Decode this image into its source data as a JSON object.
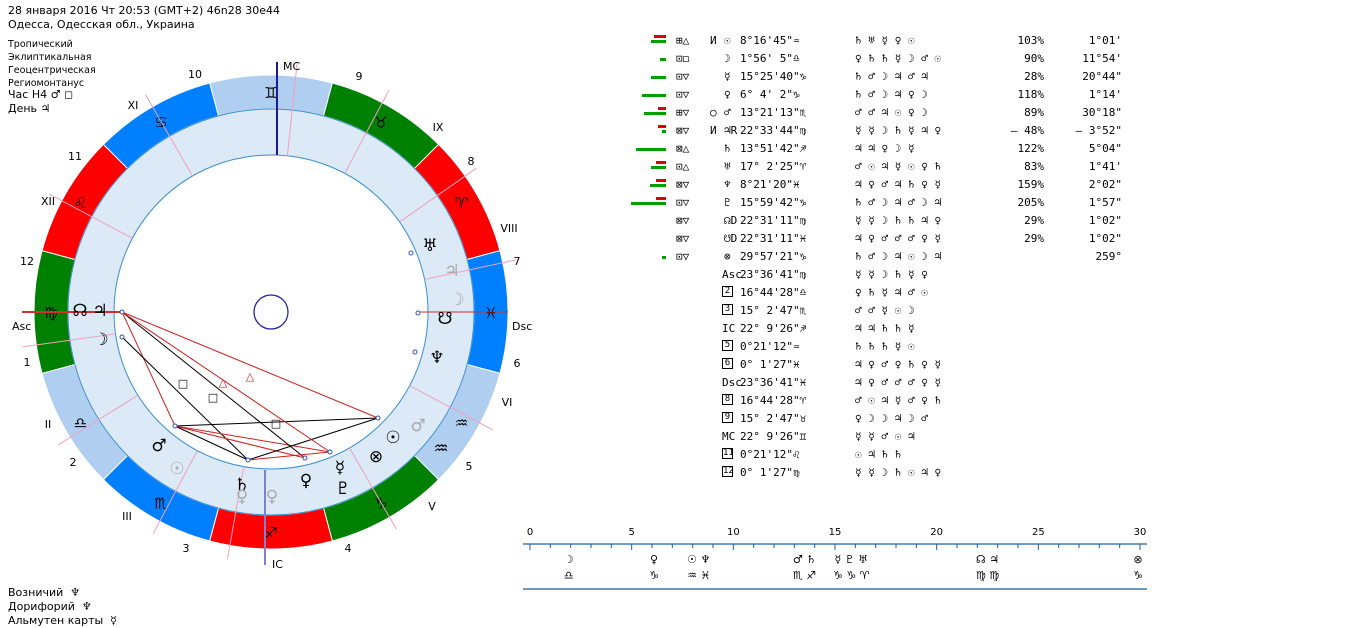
{
  "header": {
    "line1": "28 января 2016  Чт  20:53 (GMT+2) 46n28  30e44",
    "line2": "Одесса, Одесская обл., Украина"
  },
  "settings": [
    "Тропический",
    "Эклиптикальная",
    "Геоцентрическая",
    "Региомонтанус"
  ],
  "hour_line": "Час Н4 ♂ ◻",
  "day_line": "День ♃",
  "footer": [
    {
      "label": "Возничий",
      "glyph": "♆"
    },
    {
      "label": "Дорифорий",
      "glyph": "♆"
    },
    {
      "label": "Альмутен карты",
      "glyph": "☿"
    }
  ],
  "wheel": {
    "cusps": {
      "mc": "MC",
      "ic": "IC",
      "asc": "Asc",
      "dsc": "Dsc"
    },
    "house_numbers": [
      "1",
      "2",
      "3",
      "4",
      "5",
      "6",
      "7",
      "8",
      "9",
      "10",
      "11",
      "12"
    ],
    "roman_numbers": [
      "I",
      "II",
      "III",
      "IV",
      "V",
      "VI",
      "VII",
      "VIII",
      "IX",
      "X",
      "XI",
      "XII"
    ],
    "sign_glyphs": [
      "♊",
      "♉",
      "♈",
      "♓",
      "♒",
      "♑",
      "♐",
      "♏",
      "♎",
      "♍",
      "♌",
      "♋"
    ],
    "planet_glyphs": [
      "☊",
      "♃",
      "☽",
      "♅",
      "♃",
      "☽",
      "☋",
      "♆",
      "♂",
      "☉",
      "♒",
      "☿",
      "♀",
      "♇",
      "⊗",
      "♄",
      "♀",
      "♂",
      "☉"
    ],
    "colors": {
      "fire": "#ff0000",
      "earth": "#008000",
      "air": "#b0cef0",
      "water": "#0080ff",
      "ring": "#dce9f7"
    }
  },
  "planets_table": [
    {
      "aspect": "⊞△",
      "mark": "И",
      "glyph": "☉",
      "pos": "8°16'45\"♒",
      "rulers": "♄  ♅ ☿ ♀ ☉",
      "pct": "103%",
      "time": "1°01'"
    },
    {
      "aspect": "⊡◻",
      "mark": "",
      "glyph": "☽",
      "pos": "1°56' 5\"♎",
      "rulers": "♀ ♄ ♄ ☿ ☽ ♂ ☉",
      "pct": "90%",
      "time": "11°54'"
    },
    {
      "aspect": "⊡▽",
      "mark": "",
      "glyph": "☿",
      "pos": "15°25'40\"♑",
      "rulers": "♄ ♂ ☽ ♃ ♂ ♃",
      "pct": "28%",
      "time": "20°44\""
    },
    {
      "aspect": "⊡▽",
      "mark": "",
      "glyph": "♀",
      "pos": "6° 4' 2\"♑",
      "rulers": "♄ ♂ ☽ ♃ ♀ ☽",
      "pct": "118%",
      "time": "1°14'"
    },
    {
      "aspect": "⊞▽",
      "mark": "○",
      "glyph": "♂",
      "pos": "13°21'13\"♏",
      "rulers": "♂  ♂ ♃ ☉ ♀ ☽",
      "pct": "89%",
      "time": "30°18\""
    },
    {
      "aspect": "⊠▽",
      "mark": "И",
      "glyph": "♃R",
      "pos": "22°33'44\"♍",
      "rulers": "☿ ☿ ☽ ♄ ☿ ♃ ♀",
      "pct": "– 48%",
      "time": "– 3°52\""
    },
    {
      "aspect": "⊠△",
      "mark": "",
      "glyph": "♄",
      "pos": "13°51'42\"♐",
      "rulers": "♃  ♃ ♀ ☽ ☿",
      "pct": "122%",
      "time": "5°04\""
    },
    {
      "aspect": "⊡△",
      "mark": "",
      "glyph": "♅",
      "pos": "17° 2'25\"♈",
      "rulers": "♂ ☉ ♃ ☿ ☉ ♀ ♄",
      "pct": "83%",
      "time": "1°41'"
    },
    {
      "aspect": "⊠▽",
      "mark": "",
      "glyph": "♆",
      "pos": "8°21'20\"♓",
      "rulers": "♃ ♀ ♂ ♃ ♄ ♀ ☿",
      "pct": "159%",
      "time": "2°02\""
    },
    {
      "aspect": "⊡▽",
      "mark": "",
      "glyph": "♇",
      "pos": "15°59'42\"♑",
      "rulers": "♄ ♂ ☽ ♃ ♂ ☽ ♃",
      "pct": "205%",
      "time": "1°57\""
    },
    {
      "aspect": "⊠▽",
      "mark": "",
      "glyph": "☊D",
      "pos": "22°31'11\"♍",
      "rulers": "☿ ☿ ☽ ♄ ♄ ♃ ♀",
      "pct": "29%",
      "time": "1°02\""
    },
    {
      "aspect": "⊠▽",
      "mark": "",
      "glyph": "☋D",
      "pos": "22°31'11\"♓",
      "rulers": "♃ ♀ ♂ ♂ ♂ ♀ ☿",
      "pct": "29%",
      "time": "1°02\""
    },
    {
      "aspect": "⊡▽",
      "mark": "",
      "glyph": "⊗",
      "pos": "29°57'21\"♑",
      "rulers": "♄ ♂ ☽ ♃ ☉ ☽ ♃",
      "pct": "",
      "time": "259°"
    }
  ],
  "houses_table": [
    {
      "label": "Asc",
      "pos": "23°36'41\"♍",
      "rulers": "☿ ☿ ☽ ♄ ☿ ♀"
    },
    {
      "label": "2",
      "pos": "16°44'28\"♎",
      "rulers": "♀ ♄  ☿ ♃ ♂ ☉"
    },
    {
      "label": "3",
      "pos": "15° 2'47\"♏",
      "rulers": "♂   ♂ ☿ ☉ ☽"
    },
    {
      "label": "IC",
      "pos": "22° 9'26\"♐",
      "rulers": "♃   ♃ ♄ ♄ ☿"
    },
    {
      "label": "5",
      "pos": "0°21'12\"♒",
      "rulers": "♄   ♄ ♄ ☿ ☉"
    },
    {
      "label": "6",
      "pos": "0° 1'27\"♓",
      "rulers": "♃ ♀ ♂ ♀ ♄ ♀ ☿"
    },
    {
      "label": "Dsc",
      "pos": "23°36'41\"♓",
      "rulers": "♃ ♀ ♂ ♂ ♂ ♀ ☿"
    },
    {
      "label": "8",
      "pos": "16°44'28\"♈",
      "rulers": "♂ ☉ ♃ ☿ ♂ ♀ ♄"
    },
    {
      "label": "9",
      "pos": "15° 2'47\"♉",
      "rulers": "♀ ☽ ☽ ♃ ☽ ♂"
    },
    {
      "label": "MC",
      "pos": "22° 9'26\"♊",
      "rulers": "☿   ☿ ♂ ☉ ♃"
    },
    {
      "label": "11",
      "pos": "0°21'12\"♌",
      "rulers": "☉   ♃ ♄ ♄"
    },
    {
      "label": "12",
      "pos": "0° 1'27\"♍",
      "rulers": "☿ ☿ ☽ ♄ ☉ ♃ ♀"
    }
  ],
  "bars": [
    {
      "r": 12,
      "g": 15
    },
    {
      "r": 0,
      "g": 6
    },
    {
      "r": 0,
      "g": 15
    },
    {
      "r": 0,
      "g": 24
    },
    {
      "r": 8,
      "g": 22
    },
    {
      "r": 8,
      "g": 4
    },
    {
      "r": 0,
      "g": 30
    },
    {
      "r": 10,
      "g": 15
    },
    {
      "r": 10,
      "g": 16
    },
    {
      "r": 10,
      "g": 35
    },
    {
      "r": 0,
      "g": 0
    },
    {
      "r": 0,
      "g": 0
    },
    {
      "r": 0,
      "g": 4
    }
  ],
  "scale": {
    "ticks": [
      "0",
      "5",
      "10",
      "15",
      "20",
      "25",
      "30"
    ],
    "planets": [
      {
        "deg": 1.9,
        "glyph": "☽",
        "sign": "♎"
      },
      {
        "deg": 6.1,
        "glyph": "♀",
        "sign": "♑"
      },
      {
        "deg": 8.3,
        "glyph": "☉ ♆",
        "sign": "♒ ♓"
      },
      {
        "deg": 13.5,
        "glyph": "♂ ♄",
        "sign": "♏ ♐"
      },
      {
        "deg": 15.8,
        "glyph": "☿ ♇ ♅",
        "sign": "♑ ♑ ♈"
      },
      {
        "deg": 22.5,
        "glyph": "☊ ♃",
        "sign": "♍ ♍"
      },
      {
        "deg": 29.9,
        "glyph": "⊗",
        "sign": "♑"
      }
    ]
  }
}
